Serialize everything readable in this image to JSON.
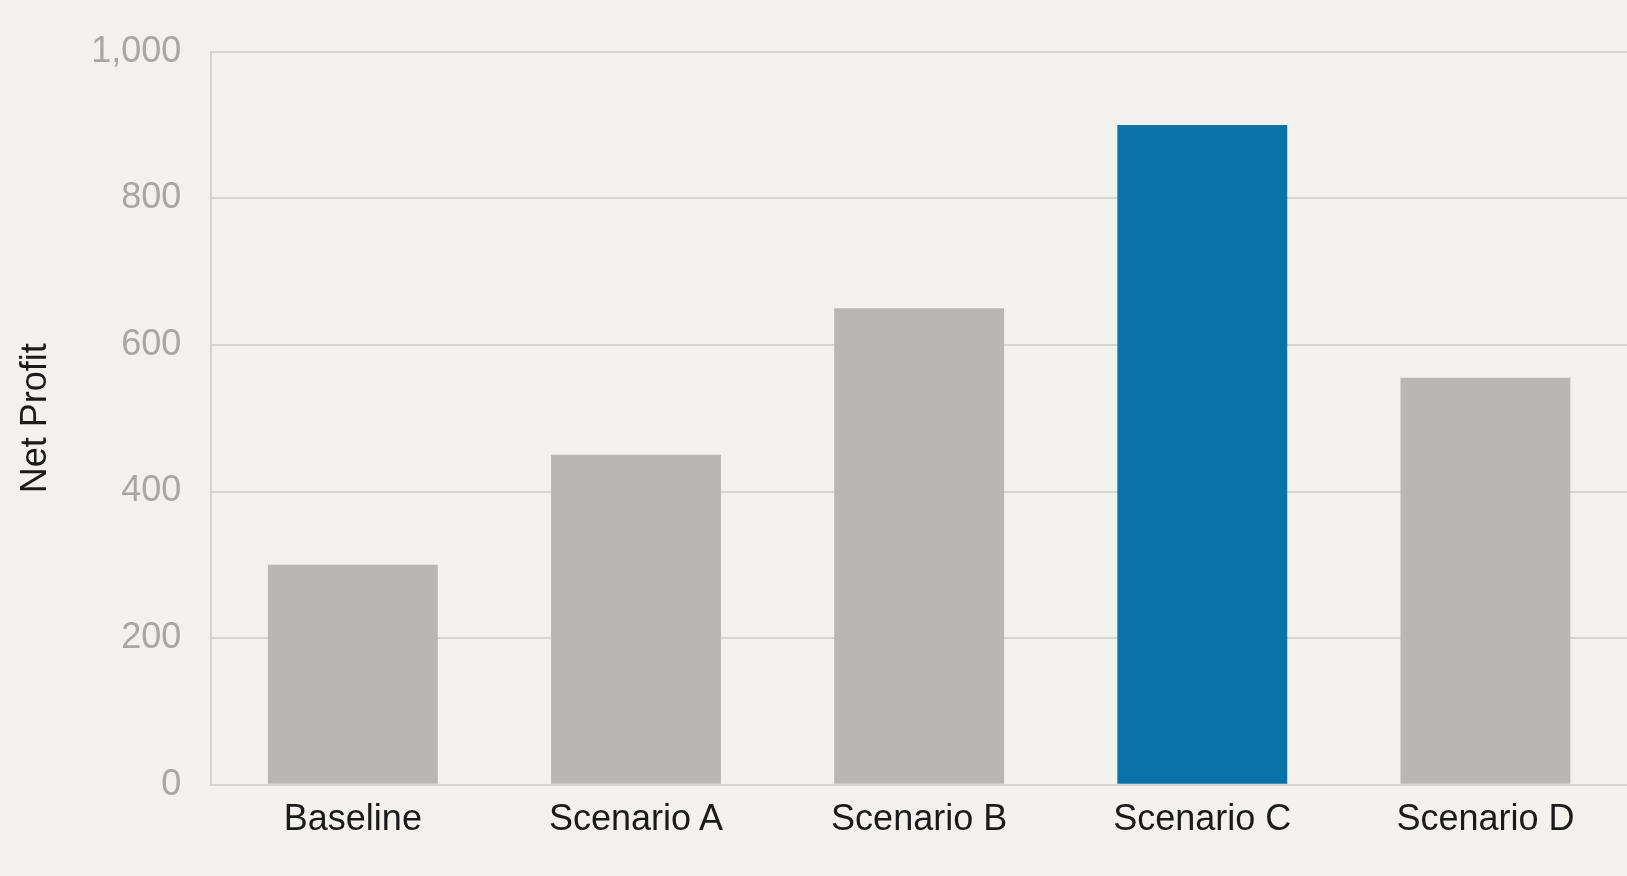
{
  "chart_data": {
    "type": "bar",
    "ylabel": "Net Profit",
    "categories": [
      "Baseline",
      "Scenario A",
      "Scenario B",
      "Scenario C",
      "Scenario D"
    ],
    "values": [
      300,
      450,
      650,
      900,
      555
    ],
    "colors": [
      "#b9b6b3",
      "#b9b6b3",
      "#b9b6b3",
      "#0872a9",
      "#b9b6b3"
    ],
    "ylim": [
      0,
      1000
    ],
    "yticks": [
      0,
      200,
      400,
      600,
      800,
      {
        "value": 1000,
        "label": "1,000"
      }
    ],
    "grid": "y",
    "legend": false
  }
}
